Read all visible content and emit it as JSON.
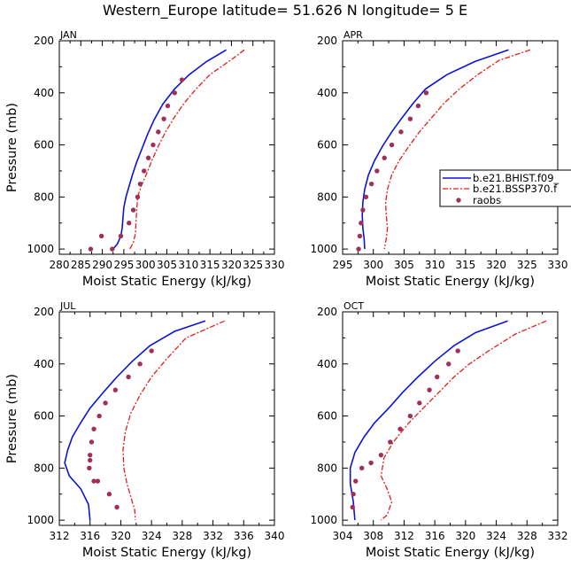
{
  "figure_title": "Western_Europe  latitude= 51.626 N longitude= 5 E",
  "colors": {
    "hist": "#0a14d8",
    "ssp": "#e0201a",
    "raobs": "#a0305a"
  },
  "legend": {
    "entries": [
      {
        "label": "b.e21.BHIST.f09_",
        "style": "solid"
      },
      {
        "label": "b.e21.BSSP370.f",
        "style": "dashed"
      },
      {
        "label": "raobs",
        "style": "dots"
      }
    ]
  },
  "chart_data": [
    {
      "type": "line",
      "panel": "JAN",
      "title": "JAN",
      "xlabel": "Moist Static Energy (kJ/kg)",
      "ylabel": "Pressure (mb)",
      "xlim": [
        280,
        330
      ],
      "xticks": [
        280,
        285,
        290,
        295,
        300,
        305,
        310,
        315,
        320,
        325,
        330
      ],
      "ylim": [
        200,
        1020
      ],
      "yticks": [
        200,
        400,
        600,
        800,
        1000
      ],
      "y_inverted": true,
      "series": [
        {
          "name": "b.e21.BHIST.f09_",
          "style": "solid",
          "x": [
            318.8,
            314.2,
            310.2,
            306.8,
            304.0,
            302.0,
            300.5,
            299.2,
            298.0,
            297.0,
            296.2,
            295.5,
            295.0,
            294.8,
            294.6,
            294.3,
            293.5,
            292.5
          ],
          "y": [
            235,
            280,
            330,
            385,
            445,
            505,
            560,
            615,
            665,
            715,
            760,
            800,
            840,
            880,
            920,
            950,
            980,
            1000
          ]
        },
        {
          "name": "b.e21.BSSP370.f",
          "style": "dashed",
          "x": [
            323.0,
            320.2,
            315.0,
            311.8,
            309.0,
            306.7,
            304.7,
            303.0,
            301.5,
            300.3,
            299.0,
            298.2,
            298.0,
            297.8,
            297.7,
            297.2,
            296.4
          ],
          "y": [
            235,
            270,
            330,
            385,
            440,
            495,
            550,
            605,
            660,
            710,
            760,
            800,
            850,
            900,
            940,
            975,
            1000
          ]
        },
        {
          "name": "raobs",
          "style": "dots",
          "x": [
            308.5,
            306.8,
            305.2,
            304.3,
            303.0,
            301.8,
            300.7,
            299.7,
            298.8,
            298.2,
            297.2,
            296.2,
            294.3,
            292.3,
            289.8,
            287.3
          ],
          "y": [
            350,
            400,
            450,
            500,
            550,
            600,
            650,
            700,
            750,
            800,
            850,
            900,
            950,
            1000,
            950,
            1000
          ]
        }
      ]
    },
    {
      "type": "line",
      "panel": "APR",
      "title": "APR",
      "xlabel": "Moist Static Energy (kJ/kg)",
      "ylabel": "",
      "xlim": [
        295,
        330
      ],
      "xticks": [
        295,
        300,
        305,
        310,
        315,
        320,
        325,
        330
      ],
      "ylim": [
        200,
        1020
      ],
      "yticks": [
        200,
        400,
        600,
        800,
        1000
      ],
      "y_inverted": true,
      "series": [
        {
          "name": "b.e21.BHIST.f09_",
          "style": "solid",
          "x": [
            322.0,
            316.5,
            312.0,
            308.5,
            306.5,
            304.7,
            303.0,
            301.5,
            300.2,
            299.2,
            298.6,
            298.3,
            298.2,
            298.3,
            298.5,
            298.6
          ],
          "y": [
            235,
            280,
            330,
            385,
            440,
            495,
            550,
            605,
            660,
            715,
            770,
            820,
            870,
            920,
            960,
            1000
          ]
        },
        {
          "name": "b.e21.BSSP370.f",
          "style": "dashed",
          "x": [
            325.5,
            320.5,
            317.0,
            314.0,
            311.5,
            309.5,
            307.5,
            305.8,
            304.2,
            303.0,
            302.3,
            302.0,
            302.1,
            302.3,
            302.1,
            301.8
          ],
          "y": [
            235,
            275,
            330,
            385,
            440,
            495,
            550,
            605,
            660,
            715,
            770,
            820,
            870,
            920,
            960,
            1000
          ]
        },
        {
          "name": "raobs",
          "style": "dots",
          "x": [
            308.6,
            307.3,
            306.0,
            304.5,
            303.0,
            301.8,
            300.6,
            299.7,
            298.8,
            298.3,
            298.0,
            297.8,
            297.6
          ],
          "y": [
            400,
            450,
            500,
            550,
            600,
            650,
            700,
            750,
            800,
            850,
            900,
            950,
            1000
          ]
        }
      ]
    },
    {
      "type": "line",
      "panel": "JUL",
      "title": "JUL",
      "xlabel": "Moist Static Energy (kJ/kg)",
      "ylabel": "Pressure (mb)",
      "xlim": [
        312,
        340
      ],
      "xticks": [
        312,
        316,
        320,
        324,
        328,
        332,
        336,
        340
      ],
      "ylim": [
        200,
        1020
      ],
      "yticks": [
        200,
        400,
        600,
        800,
        1000
      ],
      "y_inverted": true,
      "series": [
        {
          "name": "b.e21.BHIST.f09_",
          "style": "solid",
          "x": [
            331.0,
            327.0,
            323.8,
            321.5,
            319.5,
            317.7,
            316.0,
            314.8,
            313.7,
            313.1,
            312.7,
            313.3,
            314.8,
            315.8,
            316.0
          ],
          "y": [
            235,
            275,
            330,
            390,
            450,
            510,
            570,
            625,
            680,
            730,
            780,
            830,
            880,
            940,
            1000
          ]
        },
        {
          "name": "b.e21.BSSP370.f",
          "style": "dashed",
          "x": [
            333.5,
            328.5,
            326.0,
            324.0,
            322.5,
            321.3,
            320.6,
            320.3,
            320.4,
            320.8,
            321.4,
            321.8,
            321.9
          ],
          "y": [
            235,
            300,
            380,
            450,
            520,
            590,
            660,
            730,
            800,
            860,
            920,
            960,
            1000
          ]
        },
        {
          "name": "raobs",
          "style": "dots",
          "x": [
            324.0,
            322.5,
            321.0,
            319.3,
            318.0,
            317.2,
            316.5,
            316.2,
            316.0,
            315.9,
            316.0,
            316.5,
            317.0,
            318.5,
            319.5
          ],
          "y": [
            350,
            400,
            450,
            500,
            550,
            600,
            650,
            700,
            750,
            800,
            770,
            850,
            850,
            900,
            950
          ]
        }
      ]
    },
    {
      "type": "line",
      "panel": "OCT",
      "title": "OCT",
      "xlabel": "Moist Static Energy (kJ/kg)",
      "ylabel": "",
      "xlim": [
        304,
        332
      ],
      "xticks": [
        304,
        308,
        312,
        316,
        320,
        324,
        328,
        332
      ],
      "ylim": [
        200,
        1020
      ],
      "yticks": [
        200,
        400,
        600,
        800,
        1000
      ],
      "y_inverted": true,
      "series": [
        {
          "name": "b.e21.BHIST.f09_",
          "style": "solid",
          "x": [
            325.5,
            321.3,
            318.5,
            316.0,
            313.8,
            311.8,
            310.0,
            308.2,
            306.8,
            305.6,
            305.0,
            305.0,
            305.4,
            305.6
          ],
          "y": [
            235,
            280,
            330,
            390,
            450,
            510,
            570,
            625,
            680,
            740,
            800,
            860,
            930,
            1000
          ]
        },
        {
          "name": "b.e21.BSSP370.f",
          "style": "dashed",
          "x": [
            330.5,
            326.5,
            323.0,
            320.5,
            318.5,
            316.5,
            314.5,
            312.5,
            310.6,
            309.4,
            309.0,
            309.8,
            310.4,
            309.8,
            309.0
          ],
          "y": [
            235,
            285,
            350,
            400,
            450,
            510,
            570,
            630,
            700,
            760,
            830,
            880,
            930,
            980,
            1000
          ]
        },
        {
          "name": "raobs",
          "style": "dots",
          "x": [
            319.0,
            317.8,
            316.3,
            315.3,
            314.0,
            312.8,
            311.5,
            310.2,
            309.0,
            307.7,
            306.5,
            305.7,
            305.4,
            305.3
          ],
          "y": [
            350,
            400,
            450,
            500,
            550,
            600,
            650,
            700,
            750,
            780,
            800,
            850,
            900,
            950
          ]
        }
      ]
    }
  ]
}
